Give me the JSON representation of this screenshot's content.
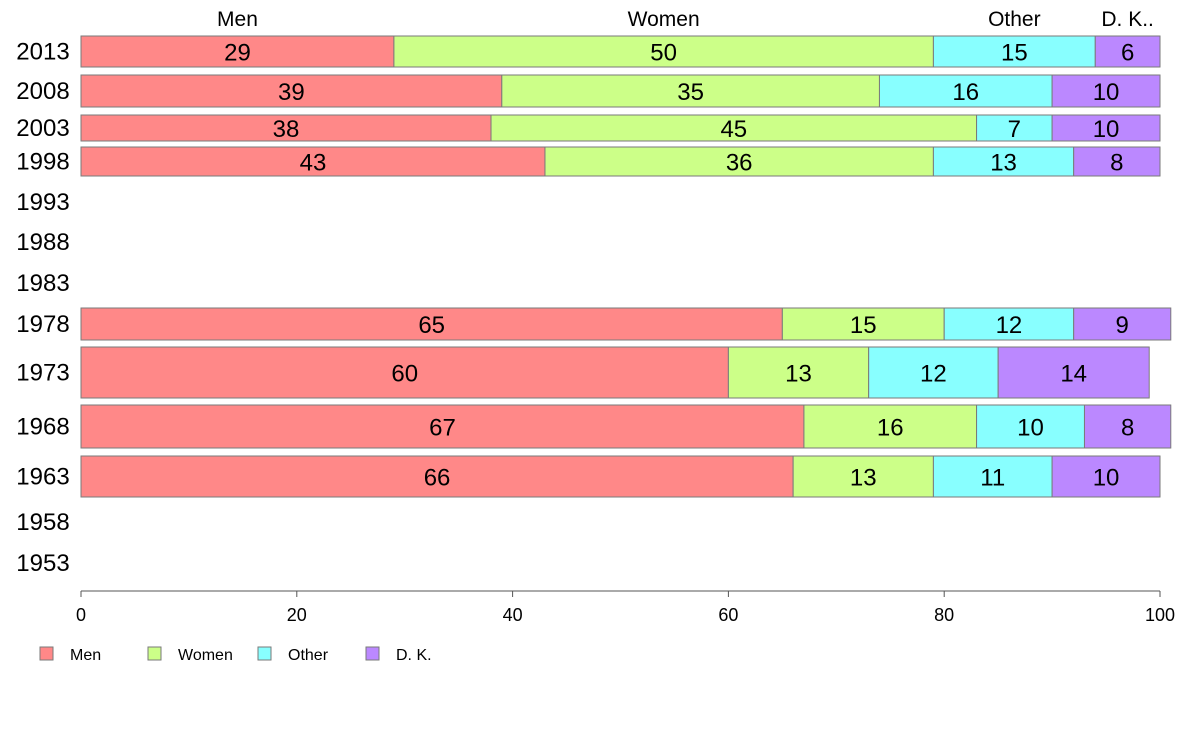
{
  "chart_data": {
    "type": "bar",
    "orientation": "horizontal",
    "stacked": true,
    "categories": [
      "2013",
      "2008",
      "2003",
      "1998",
      "1993",
      "1988",
      "1983",
      "1978",
      "1973",
      "1968",
      "1963",
      "1958",
      "1953"
    ],
    "series": [
      {
        "name": "Men",
        "color": "#ff8888",
        "values": [
          29,
          39,
          38,
          43,
          null,
          null,
          null,
          65,
          60,
          67,
          66,
          null,
          null
        ]
      },
      {
        "name": "Women",
        "color": "#ccff88",
        "values": [
          50,
          35,
          45,
          36,
          null,
          null,
          null,
          15,
          13,
          16,
          13,
          null,
          null
        ]
      },
      {
        "name": "Other",
        "color": "#88ffff",
        "values": [
          15,
          16,
          7,
          13,
          null,
          null,
          null,
          12,
          12,
          10,
          11,
          null,
          null
        ]
      },
      {
        "name": "D. K.",
        "color": "#bb88ff",
        "values": [
          6,
          10,
          10,
          8,
          null,
          null,
          null,
          9,
          14,
          8,
          10,
          null,
          null
        ]
      }
    ],
    "top_labels": [
      "Men",
      "Women",
      "Other",
      "D. K.."
    ],
    "xlim": [
      0,
      100
    ],
    "xticks": [
      "0",
      "20",
      "40",
      "60",
      "80",
      "100"
    ],
    "grid": false,
    "legend_position": "bottom-left"
  }
}
